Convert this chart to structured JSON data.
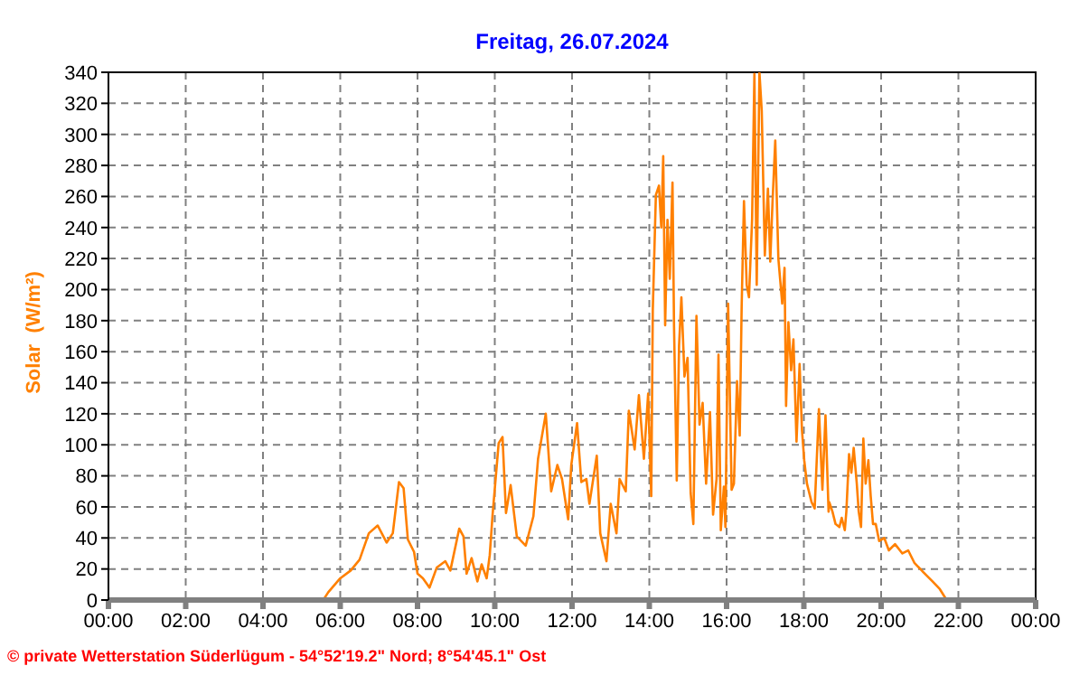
{
  "chart_data": {
    "type": "line",
    "title": "Freitag, 26.07.2024",
    "ylabel": "Solar  (W/m²)",
    "annotations": [
      "© private Wetterstation Süderlügum - 54°52'19.2\" Nord; 8°54'45.1\" Ost"
    ],
    "x": [
      0,
      5.56,
      5.69,
      6.0,
      6.27,
      6.5,
      6.74,
      6.97,
      7.2,
      7.36,
      7.52,
      7.64,
      7.75,
      7.91,
      8.0,
      8.14,
      8.31,
      8.5,
      8.72,
      8.85,
      9.08,
      9.19,
      9.27,
      9.4,
      9.55,
      9.66,
      9.79,
      9.87,
      9.94,
      10.1,
      10.2,
      10.29,
      10.41,
      10.57,
      10.8,
      11.0,
      11.12,
      11.32,
      11.46,
      11.62,
      11.74,
      11.9,
      11.98,
      12.13,
      12.24,
      12.37,
      12.45,
      12.64,
      12.73,
      12.89,
      13.0,
      13.15,
      13.23,
      13.39,
      13.47,
      13.62,
      13.73,
      13.86,
      13.97,
      14.05,
      14.09,
      14.17,
      14.25,
      14.31,
      14.36,
      14.41,
      14.47,
      14.53,
      14.6,
      14.64,
      14.71,
      14.77,
      14.83,
      14.91,
      14.99,
      15.07,
      15.14,
      15.22,
      15.3,
      15.38,
      15.47,
      15.57,
      15.65,
      15.74,
      15.79,
      15.85,
      15.93,
      15.97,
      16.04,
      16.13,
      16.19,
      16.27,
      16.34,
      16.39,
      16.45,
      16.52,
      16.58,
      16.66,
      16.72,
      16.78,
      16.85,
      16.91,
      16.99,
      17.07,
      17.13,
      17.19,
      17.26,
      17.34,
      17.44,
      17.5,
      17.54,
      17.6,
      17.67,
      17.73,
      17.81,
      17.89,
      17.95,
      18.01,
      18.08,
      18.2,
      18.28,
      18.39,
      18.48,
      18.56,
      18.64,
      18.66,
      18.74,
      18.82,
      18.92,
      18.98,
      19.06,
      19.1,
      19.17,
      19.23,
      19.29,
      19.37,
      19.42,
      19.48,
      19.54,
      19.6,
      19.67,
      19.73,
      19.79,
      19.86,
      19.95,
      20.08,
      20.2,
      20.36,
      20.55,
      20.7,
      20.86,
      21.09,
      21.33,
      21.52,
      21.67,
      21.74,
      24
    ],
    "series": [
      {
        "color": "#ff8000",
        "values": [
          0,
          0,
          5,
          14,
          19,
          26,
          43,
          48,
          37,
          43,
          76,
          72,
          39,
          31,
          17,
          14,
          8,
          21,
          25,
          19,
          46,
          41,
          17,
          27,
          12,
          23,
          14,
          29,
          54,
          101,
          105,
          56,
          74,
          41,
          35,
          54,
          91,
          120,
          70,
          87,
          78,
          52,
          87,
          114,
          76,
          78,
          62,
          93,
          43,
          25,
          62,
          43,
          78,
          70,
          122,
          97,
          132,
          91,
          133,
          67,
          187,
          261,
          267,
          240,
          286,
          177,
          245,
          207,
          269,
          176,
          77,
          164,
          195,
          144,
          156,
          69,
          49,
          183,
          113,
          127,
          75,
          121,
          55,
          78,
          158,
          45,
          73,
          47,
          191,
          71,
          75,
          141,
          106,
          189,
          257,
          203,
          195,
          245,
          339,
          203,
          340,
          315,
          222,
          265,
          218,
          257,
          296,
          220,
          191,
          214,
          125,
          179,
          148,
          168,
          102,
          152,
          110,
          90,
          75,
          63,
          59,
          123,
          71,
          119,
          57,
          63,
          57,
          49,
          47,
          53,
          45,
          57,
          94,
          82,
          98,
          75,
          57,
          47,
          104,
          75,
          90,
          67,
          49,
          49,
          38,
          40,
          32,
          36,
          30,
          32,
          24,
          18,
          12,
          7,
          1,
          0,
          0
        ]
      }
    ],
    "xlim": [
      0,
      24
    ],
    "xticks": [
      {
        "value": 0,
        "label": "00:00"
      },
      {
        "value": 2,
        "label": "02:00"
      },
      {
        "value": 4,
        "label": "04:00"
      },
      {
        "value": 6,
        "label": "06:00"
      },
      {
        "value": 8,
        "label": "08:00"
      },
      {
        "value": 10,
        "label": "10:00"
      },
      {
        "value": 12,
        "label": "12:00"
      },
      {
        "value": 14,
        "label": "14:00"
      },
      {
        "value": 16,
        "label": "16:00"
      },
      {
        "value": 18,
        "label": "18:00"
      },
      {
        "value": 20,
        "label": "20:00"
      },
      {
        "value": 22,
        "label": "22:00"
      },
      {
        "value": 24,
        "label": "00:00"
      }
    ],
    "ylim": [
      0,
      340
    ],
    "yticks": [
      0,
      20,
      40,
      60,
      80,
      100,
      120,
      140,
      160,
      180,
      200,
      220,
      240,
      260,
      280,
      300,
      320,
      340
    ],
    "grid": true,
    "legend": false,
    "marker": "none",
    "line_style": "solid"
  }
}
